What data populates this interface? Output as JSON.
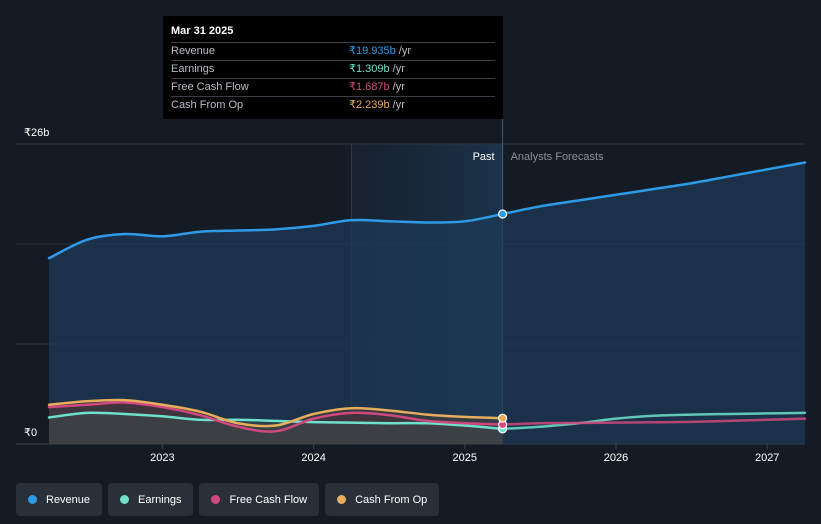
{
  "colors": {
    "revenue": "#2f9be8",
    "earnings": "#6fe0cb",
    "free_cash_flow": "#d0487f",
    "cash_from_op": "#e8ac5d"
  },
  "tooltip": {
    "date": "Mar 31 2025",
    "rows": [
      {
        "name": "Revenue",
        "value": "₹19.935b",
        "unit": "/yr"
      },
      {
        "name": "Earnings",
        "value": "₹1.309b",
        "unit": "/yr"
      },
      {
        "name": "Free Cash Flow",
        "value": "₹1.687b",
        "unit": "/yr"
      },
      {
        "name": "Cash From Op",
        "value": "₹2.239b",
        "unit": "/yr"
      }
    ]
  },
  "legend": [
    {
      "label": "Revenue"
    },
    {
      "label": "Earnings"
    },
    {
      "label": "Free Cash Flow"
    },
    {
      "label": "Cash From Op"
    }
  ],
  "chart_data": {
    "type": "line",
    "title": "",
    "xlabel": "",
    "ylabel": "",
    "y_top_label": "₹26b",
    "y_bottom_label": "₹0",
    "ylim": [
      0,
      26
    ],
    "xlim": [
      2022.25,
      2027.25
    ],
    "x_ticks": [
      2023,
      2024,
      2025,
      2026,
      2027
    ],
    "x_tick_labels": [
      "2023",
      "2024",
      "2025",
      "2026",
      "2027"
    ],
    "past_label": "Past",
    "forecast_label": "Analysts Forecasts",
    "past_region_start": 2024.25,
    "divider_x": 2025.25,
    "series": [
      {
        "name": "Revenue",
        "key": "revenue",
        "x": [
          2022.25,
          2022.5,
          2022.75,
          2023.0,
          2023.25,
          2023.5,
          2023.75,
          2024.0,
          2024.25,
          2024.5,
          2024.75,
          2025.0,
          2025.25,
          2025.5,
          2025.75,
          2026.0,
          2026.25,
          2026.5,
          2026.75,
          2027.0,
          2027.25
        ],
        "values": [
          16.1,
          17.7,
          18.2,
          18.0,
          18.4,
          18.5,
          18.6,
          18.9,
          19.4,
          19.3,
          19.2,
          19.3,
          19.935,
          20.6,
          21.1,
          21.6,
          22.1,
          22.6,
          23.2,
          23.8,
          24.4
        ]
      },
      {
        "name": "Earnings",
        "key": "earnings",
        "x": [
          2022.25,
          2022.5,
          2022.75,
          2023.0,
          2023.25,
          2023.5,
          2023.75,
          2024.0,
          2024.25,
          2024.5,
          2024.75,
          2025.0,
          2025.25,
          2025.5,
          2025.75,
          2026.0,
          2026.25,
          2026.5,
          2026.75,
          2027.0,
          2027.25
        ],
        "values": [
          2.3,
          2.7,
          2.6,
          2.4,
          2.1,
          2.1,
          2.0,
          1.9,
          1.85,
          1.8,
          1.8,
          1.6,
          1.309,
          1.5,
          1.8,
          2.2,
          2.45,
          2.55,
          2.6,
          2.65,
          2.7
        ]
      },
      {
        "name": "Free Cash Flow",
        "key": "free_cash_flow",
        "x": [
          2022.25,
          2022.5,
          2022.75,
          2023.0,
          2023.25,
          2023.5,
          2023.75,
          2024.0,
          2024.25,
          2024.5,
          2024.75,
          2025.0,
          2025.25,
          2025.5,
          2025.75,
          2026.0,
          2026.25,
          2026.5,
          2026.75,
          2027.0,
          2027.25
        ],
        "values": [
          3.2,
          3.4,
          3.6,
          3.2,
          2.5,
          1.5,
          1.1,
          2.2,
          2.7,
          2.5,
          2.0,
          1.8,
          1.687,
          1.8,
          1.82,
          1.85,
          1.88,
          1.92,
          2.0,
          2.1,
          2.2
        ]
      },
      {
        "name": "Cash From Op",
        "key": "cash_from_op",
        "x": [
          2022.25,
          2022.5,
          2022.75,
          2023.0,
          2023.25,
          2023.5,
          2023.75,
          2024.0,
          2024.25,
          2024.5,
          2024.75,
          2025.0,
          2025.25
        ],
        "values": [
          3.4,
          3.7,
          3.8,
          3.4,
          2.8,
          1.8,
          1.6,
          2.6,
          3.1,
          2.9,
          2.55,
          2.35,
          2.239
        ]
      }
    ]
  }
}
